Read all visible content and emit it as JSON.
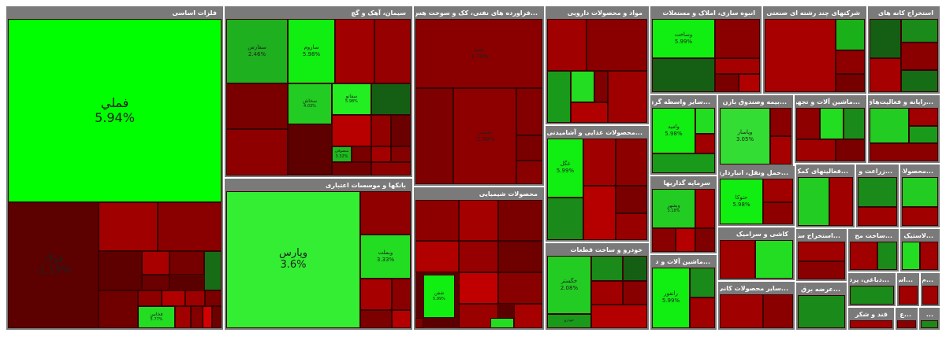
{
  "chart_data": {
    "type": "treemap",
    "sectors": [
      {
        "title": "فلزات اساسی",
        "tiles": [
          {
            "name": "فملي",
            "value": "5.94%",
            "color": "#00ff00"
          },
          {
            "name": "فولاد",
            "value": "-1.19%",
            "color": "#5c0000"
          },
          {
            "name": "",
            "value": "",
            "color": "#a00000"
          },
          {
            "name": "",
            "value": "",
            "color": "#8a0000"
          },
          {
            "name": "",
            "value": "",
            "color": "#5e0000"
          },
          {
            "name": "",
            "value": "",
            "color": "#a80000"
          },
          {
            "name": "",
            "value": "",
            "color": "#760000"
          },
          {
            "name": "",
            "value": "",
            "color": "#6a0000"
          },
          {
            "name": "",
            "value": "",
            "color": "#166d16"
          },
          {
            "name": "",
            "value": "",
            "color": "#700000"
          },
          {
            "name": "",
            "value": "",
            "color": "#8e0000"
          },
          {
            "name": "",
            "value": "",
            "color": "#b00000"
          },
          {
            "name": "",
            "value": "",
            "color": "#9c0000"
          },
          {
            "name": "",
            "value": "",
            "color": "#7a0000"
          },
          {
            "name": "فخاس",
            "value": "5.77%",
            "color": "#22dd22"
          },
          {
            "name": "",
            "value": "",
            "color": "#a00000"
          },
          {
            "name": "",
            "value": "",
            "color": "#840000"
          },
          {
            "name": "",
            "value": "",
            "color": "#d20000"
          },
          {
            "name": "",
            "value": "",
            "color": "#6e0000"
          }
        ]
      },
      {
        "title": "سیمان، آهک و گچ",
        "tiles": [
          {
            "name": "سفارس",
            "value": "2.46%",
            "color": "#1fb01f"
          },
          {
            "name": "ساروم",
            "value": "5.98%",
            "color": "#11ee11"
          },
          {
            "name": "",
            "value": "",
            "color": "#a00000"
          },
          {
            "name": "",
            "value": "",
            "color": "#960000"
          },
          {
            "name": "",
            "value": "",
            "color": "#7a0000"
          },
          {
            "name": "",
            "value": "",
            "color": "#8e0000"
          },
          {
            "name": "سخاش",
            "value": "4.03%",
            "color": "#22cc22"
          },
          {
            "name": "سفانو",
            "value": "5.98%",
            "color": "#22ee22"
          },
          {
            "name": "",
            "value": "",
            "color": "#155f15"
          },
          {
            "name": "",
            "value": "",
            "color": "#b80000"
          },
          {
            "name": "",
            "value": "",
            "color": "#5e0000"
          },
          {
            "name": "سصوفي",
            "value": "3.32%",
            "color": "#1dbb1d"
          },
          {
            "name": "",
            "value": "",
            "color": "#7a0000"
          },
          {
            "name": "",
            "value": "",
            "color": "#930000"
          },
          {
            "name": "",
            "value": "",
            "color": "#6a0000"
          },
          {
            "name": "",
            "value": "",
            "color": "#a40000"
          },
          {
            "name": "",
            "value": "",
            "color": "#850000"
          },
          {
            "name": "",
            "value": "",
            "color": "#720000"
          },
          {
            "name": "",
            "value": "",
            "color": "#8c0000"
          }
        ]
      },
      {
        "title": "...فراورده های نفتی، کک و سوخت هس",
        "tiles": [
          {
            "name": "شپنا",
            "value": "-1.79%",
            "color": "#8a0000"
          },
          {
            "name": "",
            "value": "",
            "color": "#7e0000"
          },
          {
            "name": "شبندر",
            "value": "-1.88%",
            "color": "#8e0000"
          },
          {
            "name": "",
            "value": "",
            "color": "#840000"
          },
          {
            "name": "",
            "value": "",
            "color": "#7a0000"
          },
          {
            "name": "",
            "value": "",
            "color": "#880000"
          }
        ]
      },
      {
        "title": "بانکها و موسسات اعتباری",
        "tiles": [
          {
            "name": "وپارس",
            "value": "3.6%",
            "color": "#33ee33"
          },
          {
            "name": "",
            "value": "",
            "color": "#900000"
          },
          {
            "name": "وبملت",
            "value": "3.33%",
            "color": "#22dd22"
          },
          {
            "name": "",
            "value": "",
            "color": "#a60000"
          },
          {
            "name": "",
            "value": "",
            "color": "#8a0000"
          },
          {
            "name": "",
            "value": "",
            "color": "#7c0000"
          },
          {
            "name": "",
            "value": "",
            "color": "#b40000"
          }
        ]
      },
      {
        "title": "محصولات شیمیایی",
        "tiles": [
          {
            "name": "",
            "value": "",
            "color": "#8e0000"
          },
          {
            "name": "",
            "value": "",
            "color": "#a40000"
          },
          {
            "name": "",
            "value": "",
            "color": "#7a0000"
          },
          {
            "name": "",
            "value": "",
            "color": "#b00000"
          },
          {
            "name": "",
            "value": "",
            "color": "#960000"
          },
          {
            "name": "",
            "value": "",
            "color": "#6e0000"
          },
          {
            "name": "",
            "value": "",
            "color": "#c00000"
          },
          {
            "name": "",
            "value": "",
            "color": "#880000"
          },
          {
            "name": "شفن",
            "value": "5.99%",
            "color": "#11ee11"
          },
          {
            "name": "",
            "value": "",
            "color": "#9a0000"
          },
          {
            "name": "",
            "value": "",
            "color": "#22dd22"
          },
          {
            "name": "",
            "value": "",
            "color": "#800000"
          },
          {
            "name": "",
            "value": "",
            "color": "#a60000"
          }
        ]
      },
      {
        "title": "مواد و محصولات دارویی",
        "tiles": [
          {
            "name": "",
            "value": "",
            "color": "#a00000"
          },
          {
            "name": "",
            "value": "",
            "color": "#8a0000"
          },
          {
            "name": "",
            "value": "",
            "color": "#9e0000"
          },
          {
            "name": "",
            "value": "",
            "color": "#1a9a1a"
          },
          {
            "name": "",
            "value": "",
            "color": "#22dd22"
          },
          {
            "name": "",
            "value": "",
            "color": "#b00000"
          },
          {
            "name": "",
            "value": "",
            "color": "#7e0000"
          }
        ]
      },
      {
        "title": "...محصولات غذایی و آشامیدنی",
        "tiles": [
          {
            "name": "غگل",
            "value": "5.99%",
            "color": "#11ee11"
          },
          {
            "name": "",
            "value": "",
            "color": "#1a8a1a"
          },
          {
            "name": "",
            "value": "",
            "color": "#a00000"
          },
          {
            "name": "",
            "value": "",
            "color": "#8c0000"
          },
          {
            "name": "",
            "value": "",
            "color": "#b60000"
          },
          {
            "name": "",
            "value": "",
            "color": "#7a0000"
          },
          {
            "name": "",
            "value": "",
            "color": "#980000"
          }
        ]
      },
      {
        "title": "خودرو و ساخت قطعات",
        "tiles": [
          {
            "name": "خگستر",
            "value": "2.08%",
            "color": "#22cc22"
          },
          {
            "name": "",
            "value": "",
            "color": "#1a8a1a"
          },
          {
            "name": "",
            "value": "",
            "color": "#155f15"
          },
          {
            "name": "",
            "value": "",
            "color": "#a00000"
          },
          {
            "name": "",
            "value": "",
            "color": "#880000"
          },
          {
            "name": "",
            "value": "",
            "color": "#b40000"
          },
          {
            "name": "خودرو",
            "value": "",
            "color": "#1a9a1a"
          }
        ]
      },
      {
        "title": "انبوه سازی، املاک و مستغلات",
        "tiles": [
          {
            "name": "وساخت",
            "value": "5.99%",
            "color": "#11ee11"
          },
          {
            "name": "",
            "value": "",
            "color": "#8a0000"
          },
          {
            "name": "",
            "value": "",
            "color": "#a40000"
          },
          {
            "name": "",
            "value": "",
            "color": "#155f15"
          },
          {
            "name": "",
            "value": "",
            "color": "#7a0000"
          },
          {
            "name": "",
            "value": "",
            "color": "#b00000"
          }
        ]
      },
      {
        "title": "شرکتهای چند رشته ای صنعتی",
        "tiles": [
          {
            "name": "",
            "value": "",
            "color": "#a80000"
          },
          {
            "name": "",
            "value": "",
            "color": "#1ab01a"
          },
          {
            "name": "",
            "value": "",
            "color": "#8e0000"
          },
          {
            "name": "",
            "value": "",
            "color": "#760000"
          }
        ]
      },
      {
        "title": "استخراج کانه های",
        "tiles": [
          {
            "name": "",
            "value": "",
            "color": "#155f15"
          },
          {
            "name": "",
            "value": "",
            "color": "#1a8a1a"
          },
          {
            "name": "",
            "value": "",
            "color": "#8a0000"
          },
          {
            "name": "",
            "value": "",
            "color": "#a60000"
          },
          {
            "name": "",
            "value": "",
            "color": "#156d15"
          }
        ]
      },
      {
        "title": "...سایر واسطه گری",
        "tiles": [
          {
            "name": "وامید",
            "value": "5.98%",
            "color": "#11ee11"
          },
          {
            "name": "",
            "value": "",
            "color": "#22dd22"
          },
          {
            "name": "",
            "value": "",
            "color": "#a00000"
          },
          {
            "name": "",
            "value": "",
            "color": "#1a9a1a"
          }
        ]
      },
      {
        "title": "...بیمه وصندوق بازن",
        "tiles": [
          {
            "name": "وپاسار",
            "value": "3.05%",
            "color": "#33dd33"
          },
          {
            "name": "",
            "value": "",
            "color": "#8a0000"
          },
          {
            "name": "",
            "value": "",
            "color": "#a60000"
          }
        ]
      },
      {
        "title": "...ماشین آلات و تجهیز",
        "tiles": [
          {
            "name": "",
            "value": "",
            "color": "#8e0000"
          },
          {
            "name": "",
            "value": "",
            "color": "#22dd22"
          },
          {
            "name": "",
            "value": "",
            "color": "#1a8a1a"
          },
          {
            "name": "",
            "value": "",
            "color": "#a00000"
          },
          {
            "name": "",
            "value": "",
            "color": "#7a0000"
          }
        ]
      },
      {
        "title": "...رایانه و فعالیت‌های",
        "tiles": [
          {
            "name": "",
            "value": "",
            "color": "#22cc22"
          },
          {
            "name": "",
            "value": "",
            "color": "#a00000"
          },
          {
            "name": "",
            "value": "",
            "color": "#1a9a1a"
          },
          {
            "name": "",
            "value": "",
            "color": "#8a0000"
          }
        ]
      },
      {
        "title": "سرمایه گذاریها",
        "tiles": [
          {
            "name": "وبشهر",
            "value": "3.18%",
            "color": "#22cc22"
          },
          {
            "name": "",
            "value": "",
            "color": "#a00000"
          },
          {
            "name": "",
            "value": "",
            "color": "#8a0000"
          },
          {
            "name": "",
            "value": "",
            "color": "#b40000"
          },
          {
            "name": "",
            "value": "",
            "color": "#7e0000"
          }
        ]
      },
      {
        "title": "...حمل ونقل، انبارداری",
        "tiles": [
          {
            "name": "حتوکا",
            "value": "5.98%",
            "color": "#11ee11"
          },
          {
            "name": "",
            "value": "",
            "color": "#a00000"
          },
          {
            "name": "",
            "value": "",
            "color": "#8e0000"
          }
        ]
      },
      {
        "title": "...فعالیتهای کمک",
        "tiles": [
          {
            "name": "",
            "value": "",
            "color": "#22cc22"
          },
          {
            "name": "",
            "value": "",
            "color": "#a00000"
          }
        ]
      },
      {
        "title": "...زراعت و خ",
        "tiles": [
          {
            "name": "",
            "value": "",
            "color": "#1a8a1a"
          },
          {
            "name": "",
            "value": "",
            "color": "#a00000"
          }
        ]
      },
      {
        "title": "...محصولات",
        "tiles": [
          {
            "name": "",
            "value": "",
            "color": "#22cc22"
          },
          {
            "name": "",
            "value": "",
            "color": "#a00000"
          }
        ]
      },
      {
        "title": "...ماشین آلات و د",
        "tiles": [
          {
            "name": "رانفور",
            "value": "5.99%",
            "color": "#11ee11"
          },
          {
            "name": "",
            "value": "",
            "color": "#1a8a1a"
          },
          {
            "name": "",
            "value": "",
            "color": "#a00000"
          }
        ]
      },
      {
        "title": "کاشی و سرامیک",
        "tiles": [
          {
            "name": "",
            "value": "",
            "color": "#a00000"
          },
          {
            "name": "",
            "value": "",
            "color": "#22dd22"
          }
        ]
      },
      {
        "title": "...استخراج سا",
        "tiles": [
          {
            "name": "",
            "value": "",
            "color": "#a00000"
          },
          {
            "name": "",
            "value": "",
            "color": "#8a0000"
          }
        ]
      },
      {
        "title": "...ساخت مح",
        "tiles": [
          {
            "name": "",
            "value": "",
            "color": "#a00000"
          },
          {
            "name": "",
            "value": "",
            "color": "#1a8a1a"
          }
        ]
      },
      {
        "title": "...لاستیک و",
        "tiles": [
          {
            "name": "",
            "value": "",
            "color": "#22dd22"
          },
          {
            "name": "",
            "value": "",
            "color": "#a00000"
          }
        ]
      },
      {
        "title": "...سایر محصولات کانی",
        "tiles": [
          {
            "name": "",
            "value": "",
            "color": "#a00000"
          },
          {
            "name": "",
            "value": "",
            "color": "#8a0000"
          }
        ]
      },
      {
        "title": "...عرضه برق",
        "tiles": [
          {
            "name": "",
            "value": "",
            "color": "#1a8a1a"
          }
        ]
      },
      {
        "title": "...دباغی، پرد",
        "tiles": [
          {
            "name": "",
            "value": "",
            "color": "#1a8a1a"
          }
        ]
      },
      {
        "title": "...اس",
        "tiles": [
          {
            "name": "",
            "value": "",
            "color": "#a00000"
          }
        ]
      },
      {
        "title": "...م",
        "tiles": [
          {
            "name": "",
            "value": "",
            "color": "#a00000"
          }
        ]
      },
      {
        "title": "قند و شکر",
        "tiles": [
          {
            "name": "",
            "value": "",
            "color": "#a00000"
          }
        ]
      },
      {
        "title": "...ع",
        "tiles": [
          {
            "name": "",
            "value": "",
            "color": "#8a0000"
          }
        ]
      },
      {
        "title": "...",
        "tiles": [
          {
            "name": "",
            "value": "",
            "color": "#1a8a1a"
          }
        ]
      }
    ]
  }
}
